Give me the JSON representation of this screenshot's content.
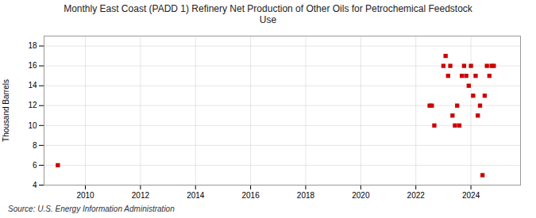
{
  "chart_data": {
    "type": "scatter",
    "title": "Monthly East Coast (PADD 1) Refinery Net Production of Other Oils for Petrochemical Feedstock\nUse",
    "ylabel": "Thousand Barrels",
    "caption": "Source: U.S. Energy Information Administration",
    "x": [
      2009.0,
      2023.0,
      2023.08,
      2023.17,
      2023.25,
      2023.33,
      2023.42,
      2023.5,
      2023.58,
      2023.67,
      2023.75,
      2023.83,
      2023.92,
      2024.0,
      2024.08,
      2024.17,
      2024.25,
      2024.33,
      2024.42,
      2024.5,
      2024.58,
      2024.67,
      2024.75,
      2024.83,
      2022.5,
      2022.58,
      2022.67
    ],
    "values": [
      6,
      16,
      17,
      15,
      16,
      11,
      10,
      12,
      10,
      15,
      16,
      15,
      14,
      16,
      13,
      15,
      11,
      12,
      5,
      13,
      16,
      15,
      16,
      16,
      12,
      12,
      10
    ],
    "color": "#cc0000",
    "marker": "square",
    "xlim": [
      2008.5,
      2025.8
    ],
    "ylim": [
      4,
      19
    ],
    "xticks": [
      2010,
      2012,
      2014,
      2016,
      2018,
      2020,
      2022,
      2024
    ],
    "yticks": [
      4,
      6,
      8,
      10,
      12,
      14,
      16,
      18
    ],
    "grid": true
  }
}
